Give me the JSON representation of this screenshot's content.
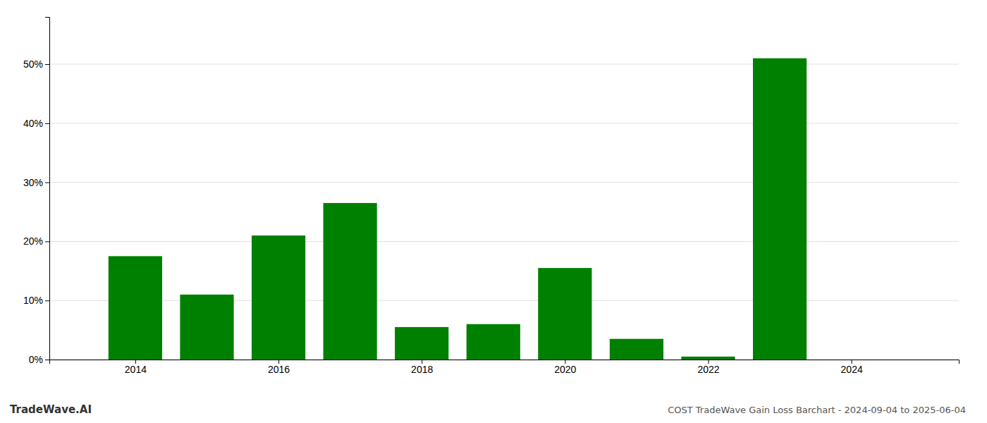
{
  "chart_data": {
    "type": "bar",
    "title": "COST TradeWave Gain Loss Barchart - 2024-09-04 to 2025-06-04",
    "annotations": [
      "TradeWave.AI"
    ],
    "x": [
      2014,
      2015,
      2016,
      2017,
      2018,
      2019,
      2020,
      2021,
      2022,
      2023,
      2024
    ],
    "values": [
      0.175,
      0.11,
      0.21,
      0.265,
      0.055,
      0.06,
      0.155,
      0.035,
      0.005,
      0.51,
      0.0
    ],
    "color": "#008000",
    "xlim": [
      2012.8,
      2025.5
    ],
    "xticks": [
      2014,
      2016,
      2018,
      2020,
      2022,
      2024
    ],
    "ylim": [
      0,
      0.58
    ],
    "yticks": [
      {
        "value": 0.0,
        "label": "0%"
      },
      {
        "value": 0.1,
        "label": "10%"
      },
      {
        "value": 0.2,
        "label": "20%"
      },
      {
        "value": 0.3,
        "label": "30%"
      },
      {
        "value": 0.4,
        "label": "40%"
      },
      {
        "value": 0.5,
        "label": "50%"
      }
    ],
    "grid": true
  }
}
